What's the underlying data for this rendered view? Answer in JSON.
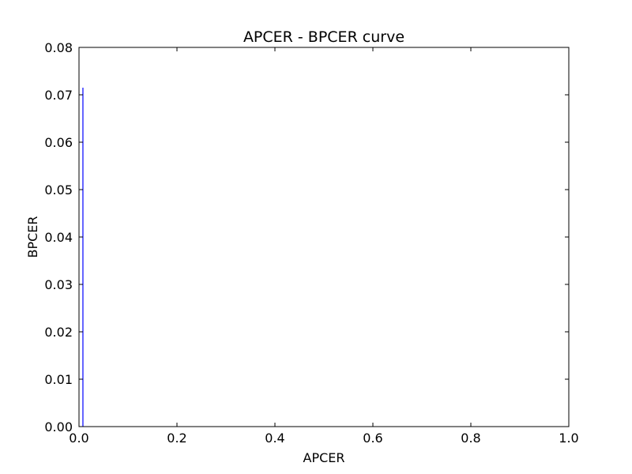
{
  "chart_data": {
    "type": "line",
    "title": "APCER - BPCER curve",
    "xlabel": "APCER",
    "ylabel": "BPCER",
    "xlim": [
      0.0,
      1.0
    ],
    "ylim": [
      0.0,
      0.08
    ],
    "x_ticks": [
      "0.0",
      "0.2",
      "0.4",
      "0.6",
      "0.8",
      "1.0"
    ],
    "y_ticks": [
      "0.00",
      "0.01",
      "0.02",
      "0.03",
      "0.04",
      "0.05",
      "0.06",
      "0.07",
      "0.08"
    ],
    "grid": false,
    "legend": "none",
    "series": [
      {
        "color": "#0000ff",
        "x": [
          0.008,
          0.008
        ],
        "y": [
          0.0,
          0.0715
        ]
      }
    ]
  }
}
